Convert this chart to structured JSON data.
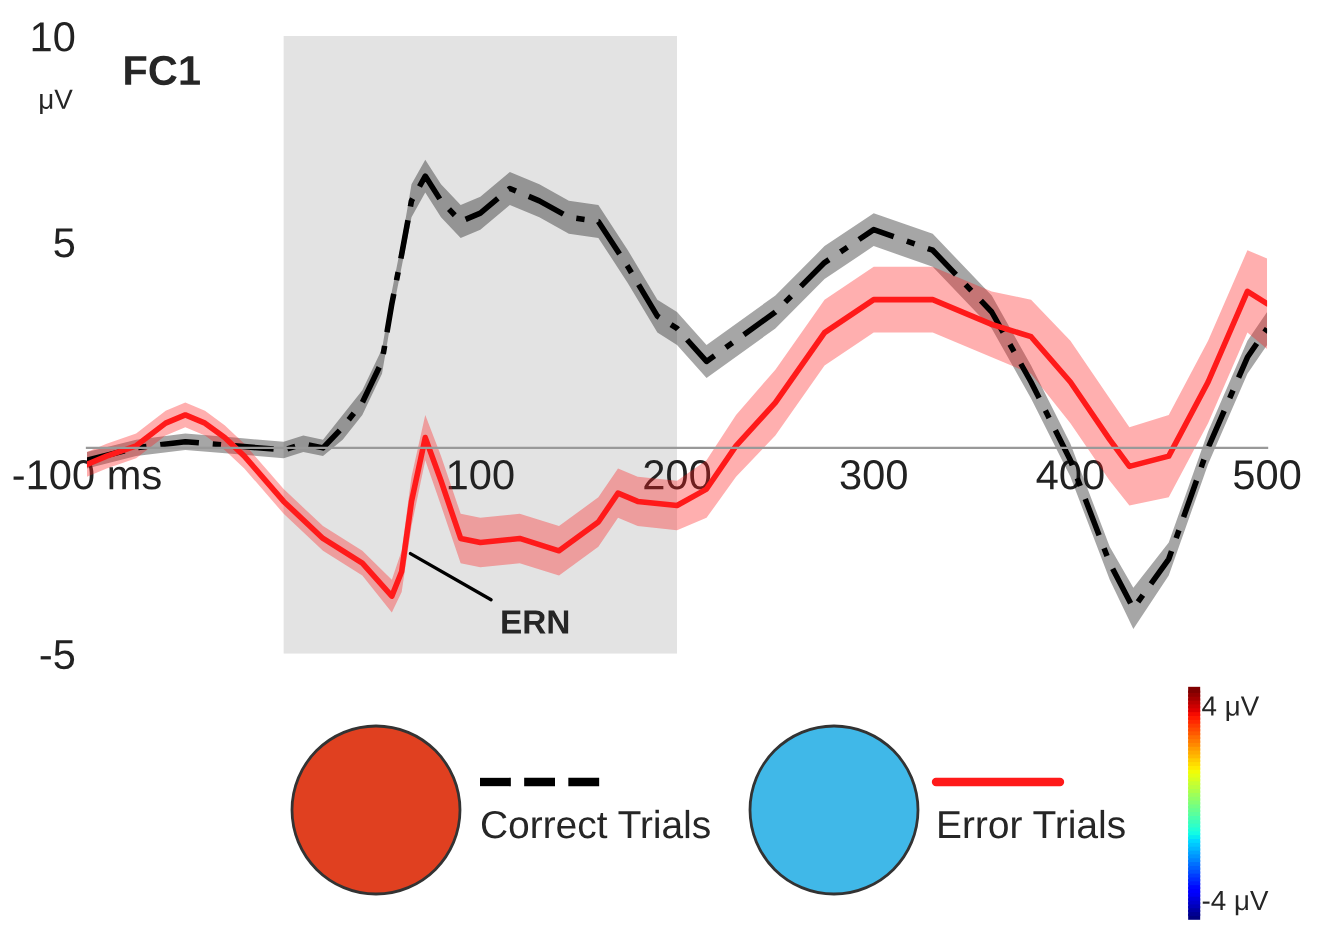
{
  "chart_data": {
    "type": "line",
    "title": "FC1",
    "ylabel": "μV",
    "xlim": [
      -100,
      500
    ],
    "ylim": [
      -5,
      10
    ],
    "xticks": [
      {
        "value": -100,
        "label": "-100 ms"
      },
      100,
      200,
      300,
      400,
      500
    ],
    "yticks": [
      -5,
      5,
      10
    ],
    "bands": [
      {
        "axis": "x",
        "from": 0,
        "to": 200,
        "color": "#e3e3e3"
      }
    ],
    "legend": "bottom",
    "annotations": [
      {
        "text": "ERN",
        "x": 62,
        "y": -2.5
      },
      "4 μV",
      "-4 μV"
    ],
    "series": [
      {
        "name": "Correct Trials",
        "color": "#000000",
        "line_style": "dashed",
        "x": [
          -100,
          -75,
          -50,
          -25,
          0,
          10,
          20,
          30,
          40,
          50,
          55,
          60,
          65,
          72,
          80,
          90,
          100,
          115,
          130,
          145,
          160,
          175,
          190,
          200,
          215,
          250,
          275,
          300,
          330,
          360,
          380,
          400,
          420,
          432,
          450,
          470,
          490,
          500
        ],
        "values": [
          -0.3,
          0,
          0.15,
          0.05,
          -0.05,
          0.1,
          0,
          0.5,
          1.1,
          2.1,
          3.5,
          4.7,
          6.0,
          6.6,
          6.0,
          5.5,
          5.7,
          6.3,
          6.0,
          5.6,
          5.5,
          4.4,
          3.2,
          2.9,
          2.1,
          3.3,
          4.5,
          5.3,
          4.8,
          3.3,
          1.6,
          -0.3,
          -2.8,
          -3.9,
          -2.7,
          0,
          2.2,
          2.9
        ],
        "lower": [
          -0.5,
          -0.2,
          -0.05,
          -0.15,
          -0.25,
          -0.1,
          -0.2,
          0.2,
          0.8,
          1.8,
          3.2,
          4.4,
          5.6,
          6.2,
          5.6,
          5.1,
          5.3,
          5.9,
          5.6,
          5.2,
          5.1,
          4.0,
          2.8,
          2.5,
          1.7,
          2.9,
          4.1,
          4.9,
          4.4,
          2.9,
          1.2,
          -0.7,
          -3.2,
          -4.4,
          -3.1,
          -0.4,
          1.8,
          2.5
        ],
        "upper": [
          -0.1,
          0.2,
          0.35,
          0.25,
          0.15,
          0.3,
          0.2,
          0.8,
          1.4,
          2.4,
          3.8,
          5.0,
          6.4,
          7.0,
          6.4,
          5.9,
          6.1,
          6.7,
          6.4,
          6.0,
          5.9,
          4.8,
          3.6,
          3.3,
          2.5,
          3.7,
          4.9,
          5.7,
          5.2,
          3.7,
          2.0,
          0.1,
          -2.4,
          -3.4,
          -2.3,
          0.4,
          2.6,
          3.3
        ]
      },
      {
        "name": "Error Trials",
        "color": "#ff1a1a",
        "line_style": "solid",
        "x": [
          -100,
          -90,
          -75,
          -60,
          -50,
          -40,
          -30,
          -20,
          0,
          20,
          40,
          55,
          60,
          65,
          72,
          80,
          90,
          100,
          120,
          140,
          160,
          170,
          180,
          200,
          215,
          230,
          250,
          275,
          300,
          330,
          360,
          380,
          400,
          420,
          430,
          450,
          470,
          490,
          500
        ],
        "values": [
          -0.4,
          -0.2,
          0.05,
          0.6,
          0.8,
          0.6,
          0.25,
          -0.2,
          -1.3,
          -2.2,
          -2.8,
          -3.6,
          -3.0,
          -1.3,
          0.25,
          -0.8,
          -2.2,
          -2.3,
          -2.2,
          -2.5,
          -1.8,
          -1.1,
          -1.3,
          -1.4,
          -1.0,
          0.05,
          1.1,
          2.8,
          3.6,
          3.6,
          3.0,
          2.7,
          1.6,
          0.2,
          -0.45,
          -0.2,
          1.6,
          3.8,
          3.5
        ],
        "lower": [
          -0.7,
          -0.5,
          -0.25,
          0.3,
          0.5,
          0.3,
          -0.05,
          -0.5,
          -1.6,
          -2.5,
          -3.1,
          -4.0,
          -3.5,
          -1.9,
          -0.3,
          -1.4,
          -2.8,
          -2.9,
          -2.8,
          -3.1,
          -2.4,
          -1.7,
          -1.9,
          -2.0,
          -1.7,
          -0.7,
          0.3,
          2.0,
          2.8,
          2.8,
          2.2,
          1.8,
          0.6,
          -0.8,
          -1.4,
          -1.2,
          0.6,
          2.8,
          2.4
        ],
        "upper": [
          -0.1,
          0.1,
          0.35,
          0.9,
          1.1,
          0.9,
          0.55,
          0.1,
          -1.0,
          -1.9,
          -2.5,
          -3.2,
          -2.5,
          -0.7,
          0.8,
          -0.2,
          -1.6,
          -1.7,
          -1.6,
          -1.9,
          -1.2,
          -0.5,
          -0.7,
          -0.8,
          -0.3,
          0.8,
          1.9,
          3.6,
          4.4,
          4.4,
          3.8,
          3.6,
          2.6,
          1.2,
          0.5,
          0.8,
          2.6,
          4.8,
          4.6
        ]
      }
    ]
  }
}
